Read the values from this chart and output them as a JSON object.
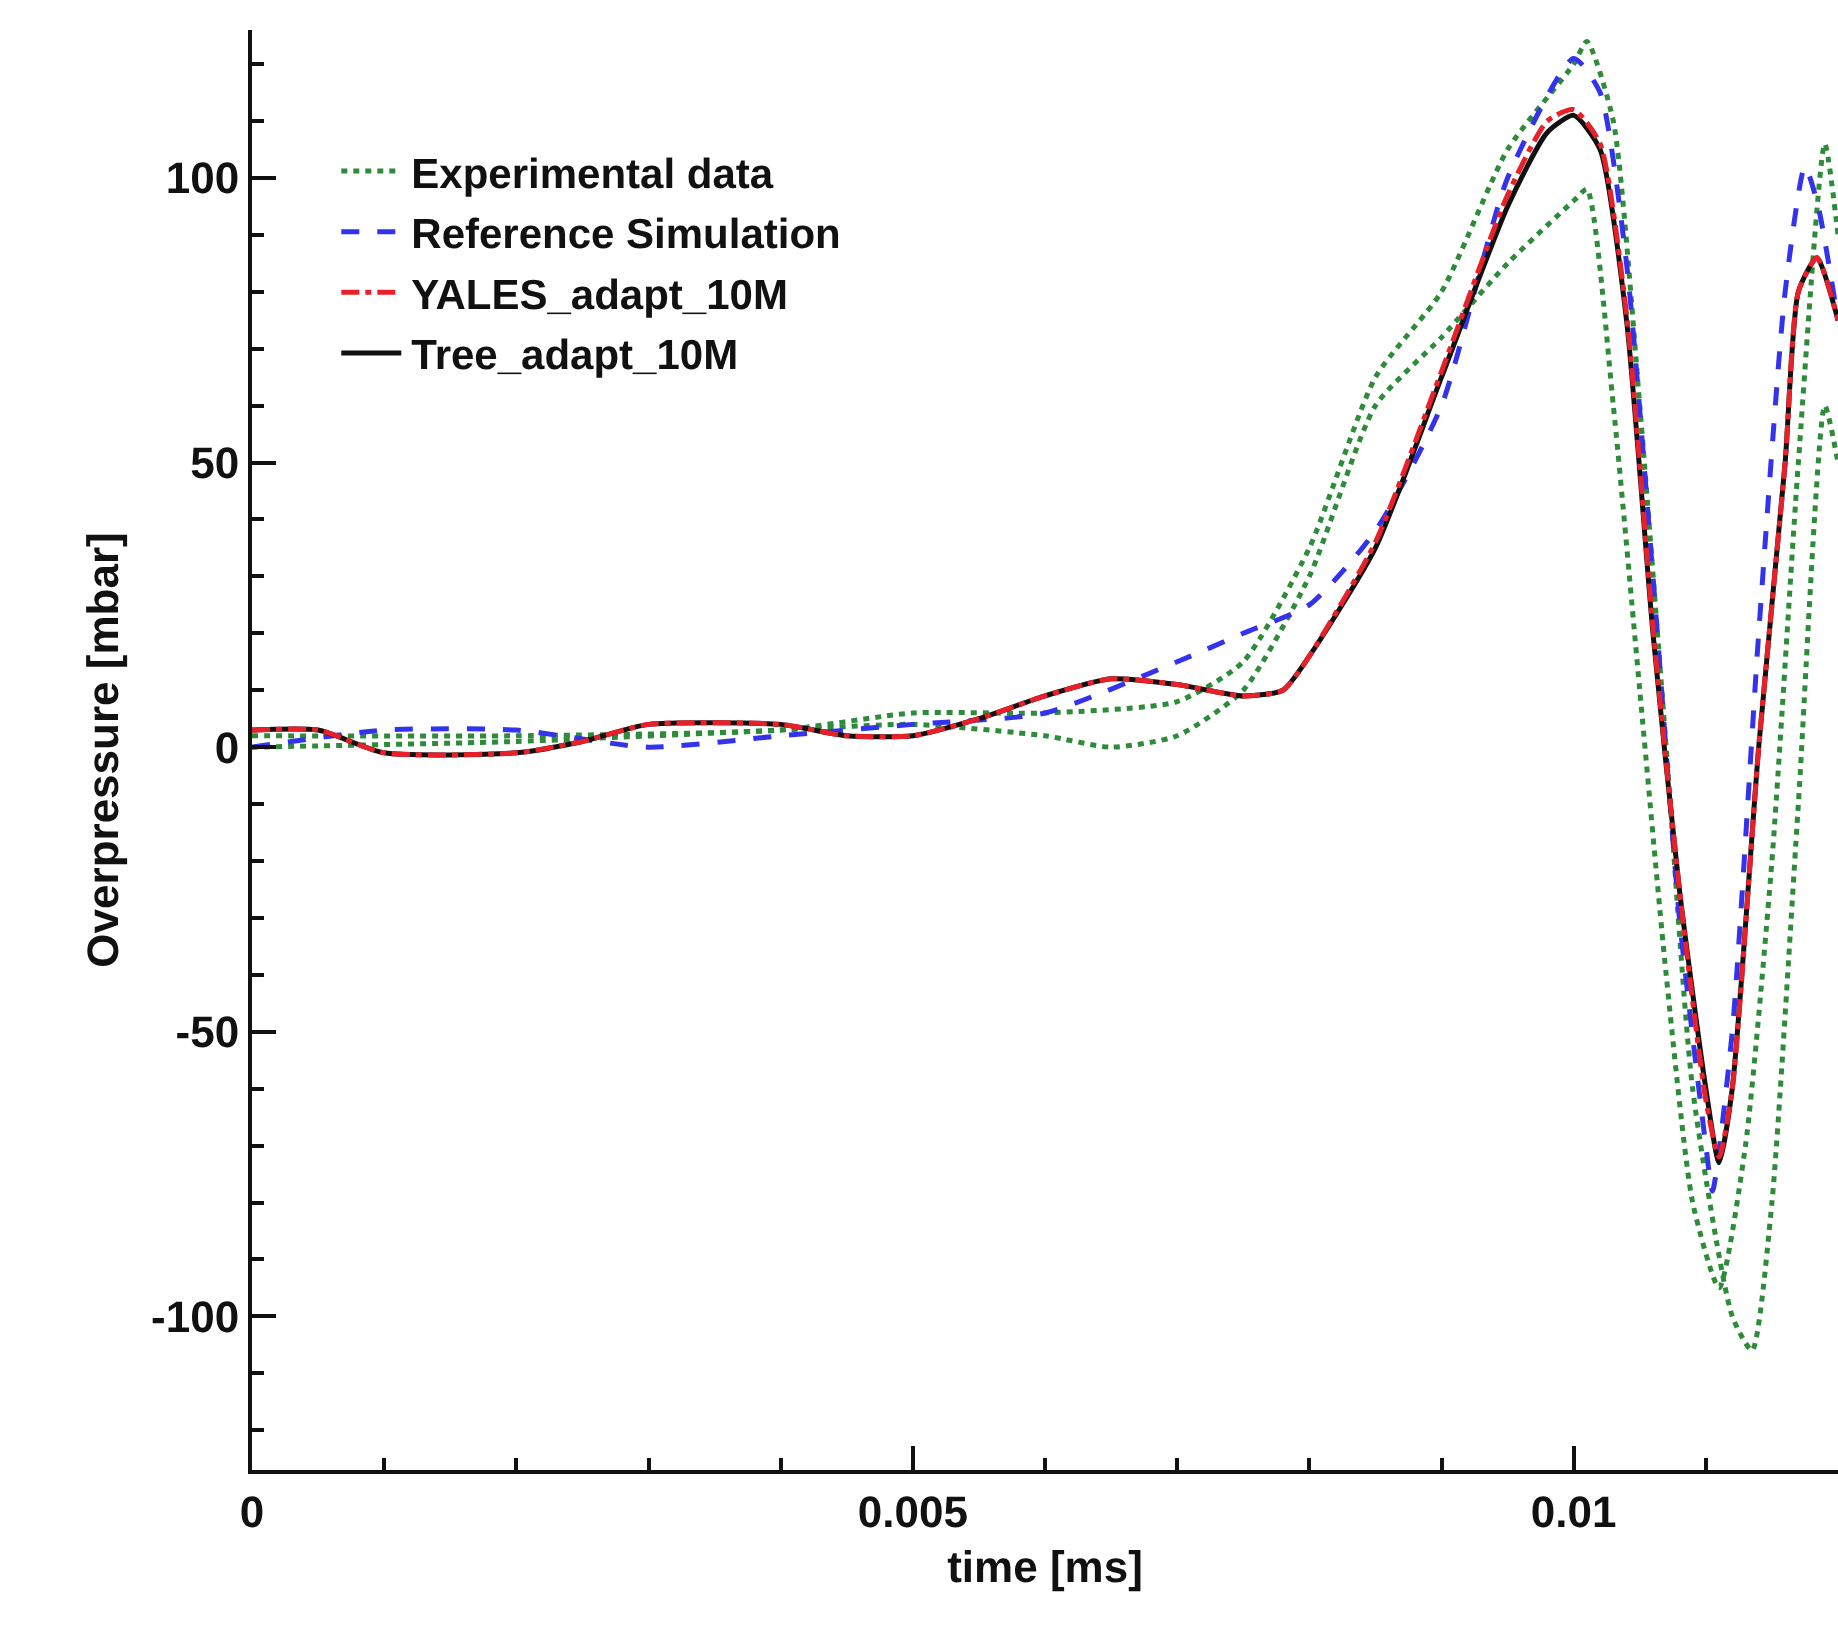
{
  "chart_data": {
    "type": "line",
    "xlabel": "time [ms]",
    "ylabel": "Overpressure [mbar]",
    "xlim": [
      0,
      0.012
    ],
    "ylim": [
      -127,
      126
    ],
    "xticks": [
      0,
      {
        "value": 0.001,
        "label": null
      },
      {
        "value": 0.002,
        "label": null
      },
      {
        "value": 0.003,
        "label": null
      },
      {
        "value": 0.004,
        "label": null
      },
      0.005,
      {
        "value": 0.006,
        "label": null
      },
      {
        "value": 0.007,
        "label": null
      },
      {
        "value": 0.008,
        "label": null
      },
      {
        "value": 0.009,
        "label": null
      },
      0.01,
      {
        "value": 0.011,
        "label": null
      }
    ],
    "yticks": [
      {
        "value": -120,
        "label": null
      },
      {
        "value": -110,
        "label": null
      },
      -100,
      {
        "value": -90,
        "label": null
      },
      {
        "value": -80,
        "label": null
      },
      {
        "value": -70,
        "label": null
      },
      {
        "value": -60,
        "label": null
      },
      -50,
      {
        "value": -40,
        "label": null
      },
      {
        "value": -30,
        "label": null
      },
      {
        "value": -20,
        "label": null
      },
      {
        "value": -10,
        "label": null
      },
      0,
      {
        "value": 10,
        "label": null
      },
      {
        "value": 20,
        "label": null
      },
      {
        "value": 30,
        "label": null
      },
      {
        "value": 40,
        "label": null
      },
      50,
      {
        "value": 60,
        "label": null
      },
      {
        "value": 70,
        "label": null
      },
      {
        "value": 80,
        "label": null
      },
      {
        "value": 90,
        "label": null
      },
      100,
      {
        "value": 110,
        "label": null
      },
      {
        "value": 120,
        "label": null
      }
    ],
    "legend": "top left",
    "marker": "none",
    "series": [
      {
        "name": "Experimental data",
        "color": "#2e8b3a",
        "line_style": "dotted",
        "x": [
          0,
          0.002,
          0.004,
          0.005,
          0.006,
          0.007,
          0.0075,
          0.008,
          0.0085,
          0.009,
          0.0095,
          0.01,
          0.0101,
          0.0103,
          0.0105,
          0.0107,
          0.0109,
          0.0112,
          0.01135,
          0.0115,
          0.0117,
          0.0119,
          0.012
        ],
        "values": [
          2,
          2,
          3,
          6,
          6,
          8,
          15,
          35,
          65,
          80,
          105,
          120,
          124,
          110,
          60,
          0,
          -60,
          -100,
          -106,
          -80,
          -10,
          60,
          50
        ]
      },
      {
        "color": "#2e8b3a",
        "line_style": "dotted",
        "x": [
          0,
          0.002,
          0.004,
          0.005,
          0.006,
          0.0065,
          0.007,
          0.0075,
          0.008,
          0.0085,
          0.009,
          0.0095,
          0.01,
          0.0101,
          0.0103,
          0.0105,
          0.0107,
          0.0109,
          0.0111,
          0.0113,
          0.0115,
          0.0117,
          0.0119,
          0.012
        ],
        "values": [
          0,
          1,
          3,
          4,
          2,
          0,
          2,
          10,
          30,
          60,
          72,
          85,
          96,
          98,
          60,
          10,
          -40,
          -80,
          -95,
          -70,
          -20,
          50,
          106,
          90
        ]
      },
      {
        "name": "Reference Simulation",
        "color": "#3333ee",
        "line_style": "dashed",
        "x": [
          0,
          0.001,
          0.002,
          0.003,
          0.004,
          0.005,
          0.006,
          0.007,
          0.0075,
          0.008,
          0.0085,
          0.009,
          0.0095,
          0.01,
          0.0102,
          0.0104,
          0.0106,
          0.0108,
          0.011,
          0.01105,
          0.0112,
          0.0114,
          0.0116,
          0.01175,
          0.01185,
          0.012
        ],
        "values": [
          0,
          3,
          3,
          0,
          2,
          4,
          6,
          15,
          20,
          25,
          38,
          60,
          100,
          121,
          115,
          85,
          30,
          -30,
          -70,
          -78,
          -50,
          20,
          80,
          102,
          95,
          75
        ]
      },
      {
        "name": "YALES_adapt_10M",
        "color": "#e8202a",
        "line_style": "dashdot",
        "x": [
          0,
          0.0005,
          0.001,
          0.002,
          0.0025,
          0.003,
          0.004,
          0.0045,
          0.005,
          0.0055,
          0.006,
          0.0065,
          0.007,
          0.0075,
          0.0078,
          0.008,
          0.0085,
          0.009,
          0.0095,
          0.0098,
          0.01,
          0.0102,
          0.0104,
          0.0106,
          0.0108,
          0.011,
          0.0111,
          0.0112,
          0.0114,
          0.0116,
          0.0117,
          0.01184,
          0.012
        ],
        "values": [
          3,
          3,
          -1,
          -1,
          1,
          4,
          4,
          2,
          2,
          5,
          9,
          12,
          11,
          9,
          10,
          16,
          36,
          66,
          97,
          110,
          112,
          106,
          76,
          21,
          -25,
          -62,
          -72,
          -60,
          0,
          50,
          80,
          86,
          75
        ]
      },
      {
        "name": "Tree_adapt_10M",
        "color": "#111111",
        "line_style": "solid",
        "x": [
          0,
          0.0005,
          0.001,
          0.002,
          0.0025,
          0.003,
          0.004,
          0.0045,
          0.005,
          0.0055,
          0.006,
          0.0065,
          0.007,
          0.0075,
          0.0078,
          0.008,
          0.0085,
          0.009,
          0.0095,
          0.0098,
          0.01,
          0.0102,
          0.0104,
          0.0106,
          0.0108,
          0.011,
          0.0111,
          0.0112,
          0.0114,
          0.0116,
          0.0117,
          0.01184,
          0.012
        ],
        "values": [
          3,
          3,
          -1,
          -1,
          1,
          4,
          4,
          2,
          2,
          5,
          9,
          12,
          11,
          9,
          10,
          16,
          35,
          65,
          95,
          108,
          111,
          105,
          75,
          20,
          -25,
          -60,
          -73,
          -60,
          0,
          50,
          80,
          86,
          75
        ]
      }
    ]
  }
}
